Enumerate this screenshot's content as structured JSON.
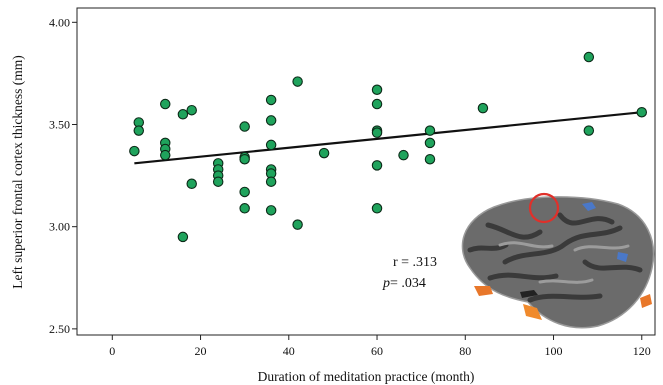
{
  "chart_data": {
    "type": "scatter",
    "title": "",
    "xlabel": "Duration of meditation practice (month)",
    "ylabel": "Left superior frontal cortex thickness (mm)",
    "xlim": [
      -8,
      123
    ],
    "ylim": [
      2.47,
      4.07
    ],
    "xticks": [
      0,
      20,
      40,
      60,
      80,
      100,
      120
    ],
    "yticks": [
      2.5,
      3.0,
      3.5,
      4.0
    ],
    "xtick_labels": [
      "0",
      "20",
      "40",
      "60",
      "80",
      "100",
      "120"
    ],
    "ytick_labels": [
      "2.50",
      "3.00",
      "3.50",
      "4.00"
    ],
    "grid": false,
    "legend": "none",
    "series": [
      {
        "color": "#1fa35c",
        "points": [
          [
            5,
            3.37
          ],
          [
            6,
            3.51
          ],
          [
            6,
            3.47
          ],
          [
            12,
            3.6
          ],
          [
            12,
            3.41
          ],
          [
            12,
            3.38
          ],
          [
            12,
            3.35
          ],
          [
            16,
            3.55
          ],
          [
            16,
            2.95
          ],
          [
            18,
            3.57
          ],
          [
            18,
            3.21
          ],
          [
            24,
            3.31
          ],
          [
            24,
            3.28
          ],
          [
            24,
            3.25
          ],
          [
            24,
            3.22
          ],
          [
            30,
            3.49
          ],
          [
            30,
            3.34
          ],
          [
            30,
            3.33
          ],
          [
            30,
            3.17
          ],
          [
            30,
            3.09
          ],
          [
            36,
            3.62
          ],
          [
            36,
            3.52
          ],
          [
            36,
            3.4
          ],
          [
            36,
            3.28
          ],
          [
            36,
            3.26
          ],
          [
            36,
            3.22
          ],
          [
            36,
            3.08
          ],
          [
            42,
            3.71
          ],
          [
            42,
            3.01
          ],
          [
            48,
            3.36
          ],
          [
            60,
            3.67
          ],
          [
            60,
            3.6
          ],
          [
            60,
            3.47
          ],
          [
            60,
            3.46
          ],
          [
            60,
            3.3
          ],
          [
            60,
            3.09
          ],
          [
            66,
            3.35
          ],
          [
            72,
            3.47
          ],
          [
            72,
            3.41
          ],
          [
            72,
            3.33
          ],
          [
            84,
            3.58
          ],
          [
            108,
            3.83
          ],
          [
            108,
            3.47
          ],
          [
            120,
            3.56
          ]
        ]
      }
    ],
    "fit_line": {
      "x": [
        5,
        120
      ],
      "y": [
        3.31,
        3.56
      ]
    },
    "annotations": {
      "r_text": "r = .313",
      "p_label": "p",
      "p_value": "= .034"
    }
  }
}
